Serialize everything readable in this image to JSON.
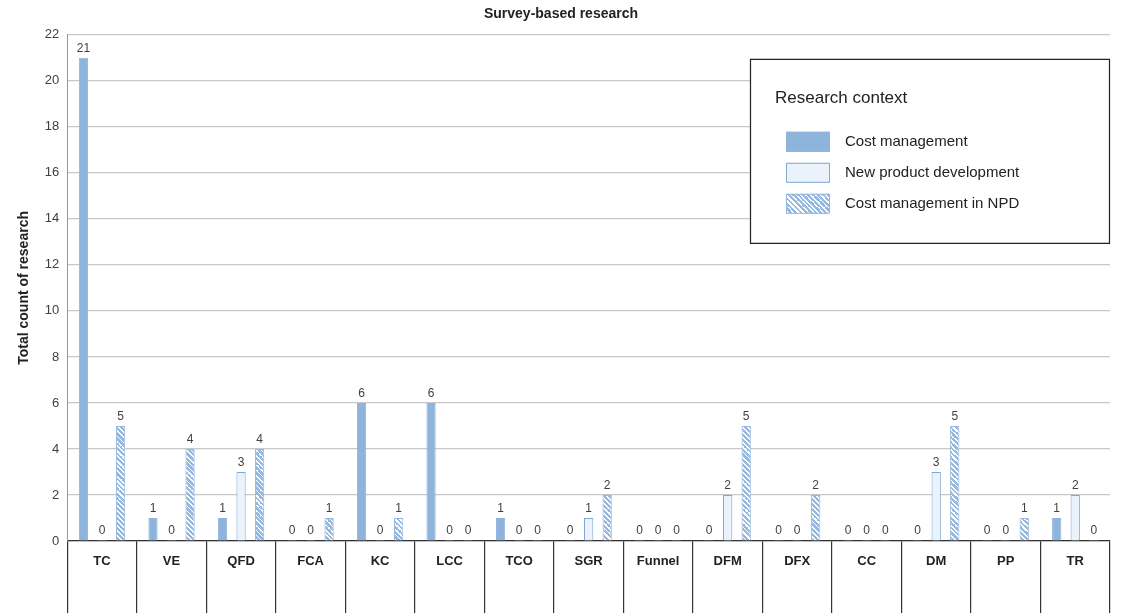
{
  "chart_data": {
    "type": "bar",
    "title": "Survey-based research",
    "ylabel": "Total count of research",
    "legend_title": "Research context",
    "categories": [
      "TC",
      "VE",
      "QFD",
      "FCA",
      "KC",
      "LCC",
      "TCO",
      "SGR",
      "Funnel",
      "DFM",
      "DFX",
      "CC",
      "DM",
      "PP",
      "TR"
    ],
    "series": [
      {
        "name": "Cost management",
        "color": "#8fb4db",
        "values": [
          21,
          1,
          1,
          0,
          6,
          6,
          1,
          0,
          0,
          0,
          0,
          0,
          0,
          0,
          1
        ]
      },
      {
        "name": "New product development",
        "color": "#eaf2fb",
        "values": [
          0,
          0,
          3,
          0,
          0,
          0,
          0,
          1,
          0,
          2,
          0,
          0,
          3,
          0,
          2
        ]
      },
      {
        "name": "Cost management in NPD",
        "color": "#94b8df",
        "values": [
          5,
          4,
          4,
          1,
          1,
          0,
          0,
          2,
          0,
          5,
          2,
          0,
          5,
          1,
          0
        ]
      }
    ],
    "ylim": [
      0,
      22
    ],
    "yticks": [
      0,
      2,
      4,
      6,
      8,
      10,
      12,
      14,
      16,
      18,
      20,
      22
    ],
    "grid": "y",
    "legend": "top right",
    "data_labels": true
  }
}
